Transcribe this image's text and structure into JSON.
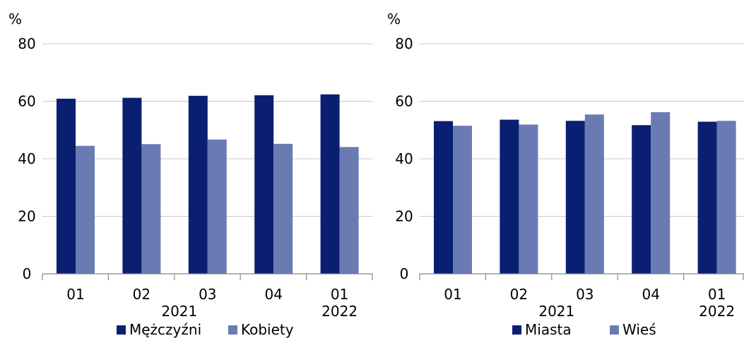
{
  "chart_data": [
    {
      "type": "bar",
      "ylabel": "%",
      "ylim": [
        0,
        80
      ],
      "yticks": [
        "0",
        "20",
        "40",
        "60",
        "80"
      ],
      "categories": [
        "01",
        "02",
        "03",
        "04",
        "01"
      ],
      "year_labels": [
        "2021",
        "2022"
      ],
      "grid": true,
      "legend_position": "bottom",
      "series": [
        {
          "name": "Mężczyźni",
          "color": "#0a1f72",
          "values": [
            60.9,
            61.2,
            61.9,
            62.1,
            62.4
          ]
        },
        {
          "name": "Kobiety",
          "color": "#6a7bb3",
          "values": [
            44.5,
            45.1,
            46.7,
            45.2,
            44.1
          ]
        }
      ]
    },
    {
      "type": "bar",
      "ylabel": "%",
      "ylim": [
        0,
        80
      ],
      "yticks": [
        "0",
        "20",
        "40",
        "60",
        "80"
      ],
      "categories": [
        "01",
        "02",
        "03",
        "04",
        "01"
      ],
      "year_labels": [
        "2021",
        "2022"
      ],
      "grid": true,
      "legend_position": "bottom",
      "series": [
        {
          "name": "Miasta",
          "color": "#0a1f72",
          "values": [
            53.1,
            53.6,
            53.2,
            51.7,
            52.9
          ]
        },
        {
          "name": "Wieś",
          "color": "#6a7bb3",
          "values": [
            51.5,
            51.9,
            55.4,
            56.2,
            53.2
          ]
        }
      ]
    }
  ]
}
